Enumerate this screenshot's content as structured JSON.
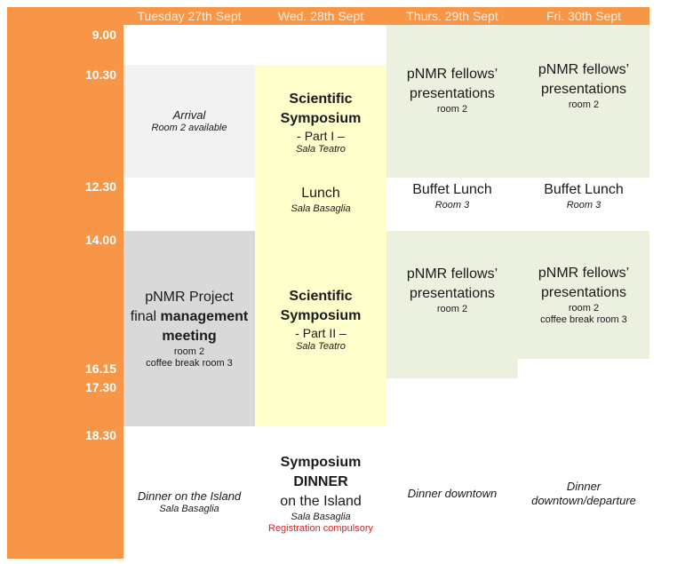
{
  "days": [
    "Tuesday 27th Sept",
    "Wed. 28th Sept",
    "Thurs. 29th Sept",
    "Fri. 30th Sept"
  ],
  "times": [
    "9.00",
    "10.30",
    "12.30",
    "14.00",
    "16.15",
    "17.30",
    "18.30"
  ],
  "tue": {
    "arrival": "Arrival",
    "arrival_room": "Room 2 available",
    "mgmt_line1": "pNMR Project",
    "mgmt_line2a": "final ",
    "mgmt_line2b": "management",
    "mgmt_line3": "meeting",
    "mgmt_room": "room 2",
    "mgmt_break": "coffee break room 3",
    "dinner": "Dinner on the Island",
    "dinner_room": "Sala Basaglia"
  },
  "wed": {
    "sym1_line1": "Scientific",
    "sym1_line2": "Symposium",
    "sym1_part": "- Part I –",
    "sym1_room": "Sala Teatro",
    "lunch": "Lunch",
    "lunch_room": "Sala Basaglia",
    "sym2_line1": "Scientific",
    "sym2_line2": "Symposium",
    "sym2_part": "- Part II –",
    "sym2_room": "Sala Teatro",
    "dinner_line1": "Symposium",
    "dinner_line2": "DINNER",
    "dinner_line3": "on the Island",
    "dinner_room": "Sala Basaglia",
    "dinner_note": "Registration compulsory"
  },
  "thu": {
    "pres1_line1": "pNMR fellows’",
    "pres1_line2": "presentations",
    "pres1_room": "room 2",
    "lunch": "Buffet Lunch",
    "lunch_room": "Room 3",
    "pres2_line1": "pNMR fellows’",
    "pres2_line2": "presentations",
    "pres2_room": "room 2",
    "dinner": "Dinner downtown"
  },
  "fri": {
    "pres1_line1": "pNMR fellows’",
    "pres1_line2": "presentations",
    "pres1_room": "room 2",
    "lunch": "Buffet Lunch",
    "lunch_room": "Room 3",
    "pres2_line1": "pNMR fellows’",
    "pres2_line2": "presentations",
    "pres2_room": "room 2",
    "pres2_break": "coffee break room 3",
    "dinner_line1": "Dinner",
    "dinner_line2": "downtown/departure"
  },
  "colors": {
    "orange": "#f79646",
    "green": "#ebf1de",
    "yellow": "#ffffcc",
    "light_gray": "#f2f2f2",
    "gray": "#d9d9d9",
    "red": "#e02020"
  }
}
